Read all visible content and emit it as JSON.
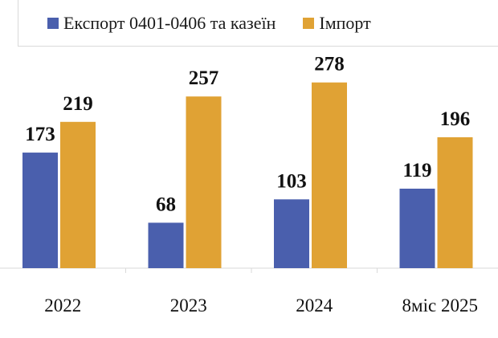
{
  "chart_data": {
    "type": "bar",
    "categories": [
      "2022",
      "2023",
      "2024",
      "8міс 2025"
    ],
    "series": [
      {
        "name": "Експорт 0401-0406 та казеїн",
        "color": "#4a5fad",
        "values": [
          173,
          68,
          103,
          119
        ]
      },
      {
        "name": "Імпорт",
        "color": "#e0a234",
        "values": [
          219,
          257,
          278,
          196
        ]
      }
    ],
    "ylim": [
      0,
      300
    ],
    "grid": false,
    "legend_position": "top"
  }
}
